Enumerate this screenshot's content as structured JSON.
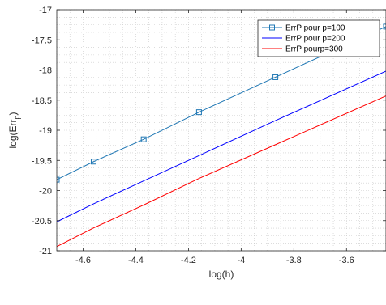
{
  "chart_data": {
    "type": "line",
    "xlabel": "log(h)",
    "ylabel": "log(Err",
    "ylabel_sub": "p",
    "ylabel_close": ")",
    "xlim": [
      -4.7,
      -3.45
    ],
    "ylim": [
      -21,
      -17
    ],
    "xticks": [
      -4.6,
      -4.4,
      -4.2,
      -4,
      -3.8,
      -3.6
    ],
    "xtick_labels": [
      "-4.6",
      "-4.4",
      "-4.2",
      "-4",
      "-3.8",
      "-3.6"
    ],
    "yticks": [
      -21,
      -20.5,
      -20,
      -19.5,
      -19,
      -18.5,
      -18,
      -17.5,
      -17
    ],
    "ytick_labels": [
      "-21",
      "-20.5",
      "-20",
      "-19.5",
      "-19",
      "-18.5",
      "-18",
      "-17.5",
      "-17"
    ],
    "grid": "major and minor dotted",
    "legend_position": "top-right",
    "series": [
      {
        "name": "ErrP pour p=100",
        "color": "#1f77b4",
        "marker": "square",
        "x": [
          -4.7,
          -4.56,
          -4.37,
          -4.16,
          -3.87,
          -3.45
        ],
        "y": [
          -19.82,
          -19.52,
          -19.15,
          -18.7,
          -18.12,
          -17.28
        ]
      },
      {
        "name": "ErrP pour p=200",
        "color": "#0000ff",
        "marker": "none",
        "x": [
          -4.7,
          -4.56,
          -4.37,
          -4.16,
          -3.87,
          -3.45
        ],
        "y": [
          -20.52,
          -20.22,
          -19.84,
          -19.42,
          -18.84,
          -18.02
        ]
      },
      {
        "name": "ErrP pourp=300",
        "color": "#ff0000",
        "marker": "none",
        "x": [
          -4.7,
          -4.56,
          -4.37,
          -4.16,
          -3.87,
          -3.45
        ],
        "y": [
          -20.93,
          -20.62,
          -20.24,
          -19.8,
          -19.24,
          -18.43
        ]
      }
    ]
  }
}
